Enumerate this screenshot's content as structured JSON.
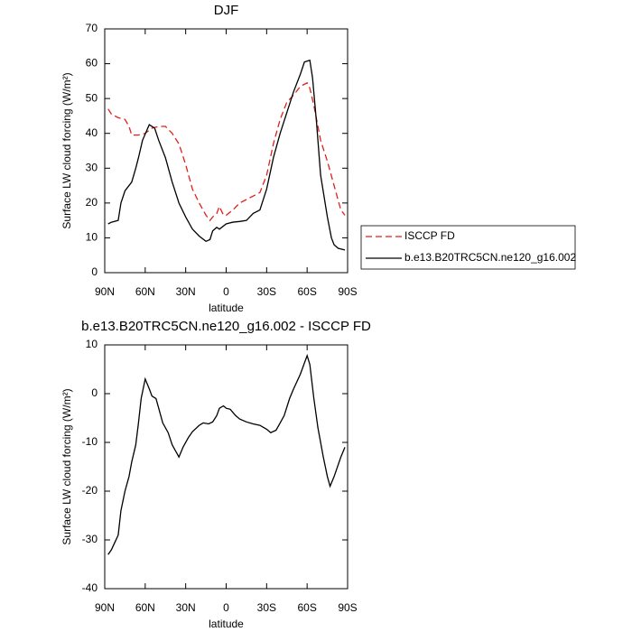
{
  "chart_data": [
    {
      "type": "line",
      "title": "DJF",
      "xlabel": "latitude",
      "ylabel": "Surface LW cloud forcing (W/m²)",
      "xlim": [
        90,
        -90
      ],
      "ylim": [
        0,
        70
      ],
      "xticks": [
        {
          "value": 90,
          "label": "90N"
        },
        {
          "value": 60,
          "label": "60N"
        },
        {
          "value": 30,
          "label": "30N"
        },
        0,
        {
          "value": -30,
          "label": "30S"
        },
        {
          "value": -60,
          "label": "60S"
        },
        {
          "value": -90,
          "label": "90S"
        }
      ],
      "yticks": [
        0,
        10,
        20,
        30,
        40,
        50,
        60,
        70
      ],
      "legend": "right",
      "series": [
        {
          "name": "ISCCP FD",
          "color": "#e0201b",
          "dash": "dashed",
          "x": [
            87.5,
            85,
            80,
            75,
            72,
            70,
            65,
            60,
            55,
            50,
            45,
            40,
            35,
            30,
            25,
            20,
            15,
            12,
            10,
            7,
            5,
            2,
            0,
            -5,
            -10,
            -15,
            -20,
            -25,
            -30,
            -35,
            -40,
            -45,
            -50,
            -55,
            -60,
            -62,
            -65,
            -70,
            -75,
            -80,
            -85,
            -88
          ],
          "values": [
            47,
            45.5,
            44.5,
            44,
            42,
            39.5,
            39.5,
            40,
            41.5,
            42,
            42,
            40,
            37,
            31,
            24,
            20,
            16.5,
            15,
            16,
            17,
            19,
            16.5,
            16.5,
            18,
            20,
            21,
            22,
            23,
            28,
            37,
            44,
            49,
            51,
            53.5,
            54.5,
            53,
            48,
            38,
            32,
            25,
            18,
            16.5
          ]
        },
        {
          "name": "b.e13.B20TRC5CN.ne120_g16.002",
          "color": "#000000",
          "dash": "solid",
          "x": [
            87.5,
            85,
            80,
            78,
            75,
            70,
            67,
            65,
            62,
            57,
            53,
            50,
            45,
            40,
            35,
            30,
            25,
            20,
            15,
            12,
            10,
            7,
            5,
            0,
            -5,
            -10,
            -15,
            -20,
            -25,
            -30,
            -35,
            -40,
            -45,
            -50,
            -55,
            -58,
            -62,
            -64,
            -67,
            -70,
            -75,
            -78,
            -80,
            -83,
            -88
          ],
          "values": [
            14,
            14.5,
            15,
            20,
            23.5,
            26,
            30,
            33,
            38,
            42.5,
            41.5,
            38,
            33,
            26,
            20,
            16,
            12.5,
            10.5,
            9,
            9.5,
            12,
            13,
            12.5,
            14,
            14.5,
            14.7,
            15,
            17,
            18,
            24,
            33,
            40,
            46,
            52,
            57,
            60.5,
            61,
            56,
            43,
            28,
            16,
            10,
            8,
            7,
            6.5
          ]
        }
      ]
    },
    {
      "type": "line",
      "title": "b.e13.B20TRC5CN.ne120_g16.002 - ISCCP FD",
      "xlabel": "latitude",
      "ylabel": "Surface LW cloud forcing (W/m²)",
      "xlim": [
        90,
        -90
      ],
      "ylim": [
        -40,
        10
      ],
      "xticks": [
        {
          "value": 90,
          "label": "90N"
        },
        {
          "value": 60,
          "label": "60N"
        },
        {
          "value": 30,
          "label": "30N"
        },
        0,
        {
          "value": -30,
          "label": "30S"
        },
        {
          "value": -60,
          "label": "60S"
        },
        {
          "value": -90,
          "label": "90S"
        }
      ],
      "yticks": [
        -40,
        -30,
        -20,
        -10,
        0,
        10
      ],
      "series": [
        {
          "color": "#000000",
          "dash": "solid",
          "x": [
            87.5,
            85,
            80,
            78,
            75,
            72,
            70,
            67,
            65,
            63,
            60,
            57,
            55,
            52,
            50,
            47,
            43,
            40,
            37,
            35,
            32,
            28,
            25,
            20,
            17,
            13,
            10,
            7,
            5,
            2,
            0,
            -3,
            -7,
            -10,
            -15,
            -20,
            -25,
            -30,
            -33,
            -37,
            -40,
            -43,
            -47,
            -50,
            -55,
            -60,
            -62,
            -65,
            -68,
            -72,
            -75,
            -77,
            -80,
            -85,
            -88
          ],
          "values": [
            -33,
            -32,
            -29,
            -24,
            -20,
            -17,
            -14,
            -10.5,
            -6,
            -1,
            3,
            1,
            -0.5,
            -1,
            -3,
            -6,
            -8,
            -10.5,
            -12,
            -13,
            -11,
            -9,
            -7.8,
            -6.5,
            -6,
            -6.2,
            -5.8,
            -4.5,
            -3,
            -2.5,
            -3,
            -3.2,
            -4.5,
            -5.2,
            -5.8,
            -6.2,
            -6.5,
            -7.3,
            -8,
            -7.5,
            -6,
            -4.5,
            -1,
            1,
            4,
            7.8,
            6,
            -1,
            -7,
            -13,
            -17,
            -19,
            -17,
            -13,
            -11
          ]
        }
      ]
    }
  ]
}
